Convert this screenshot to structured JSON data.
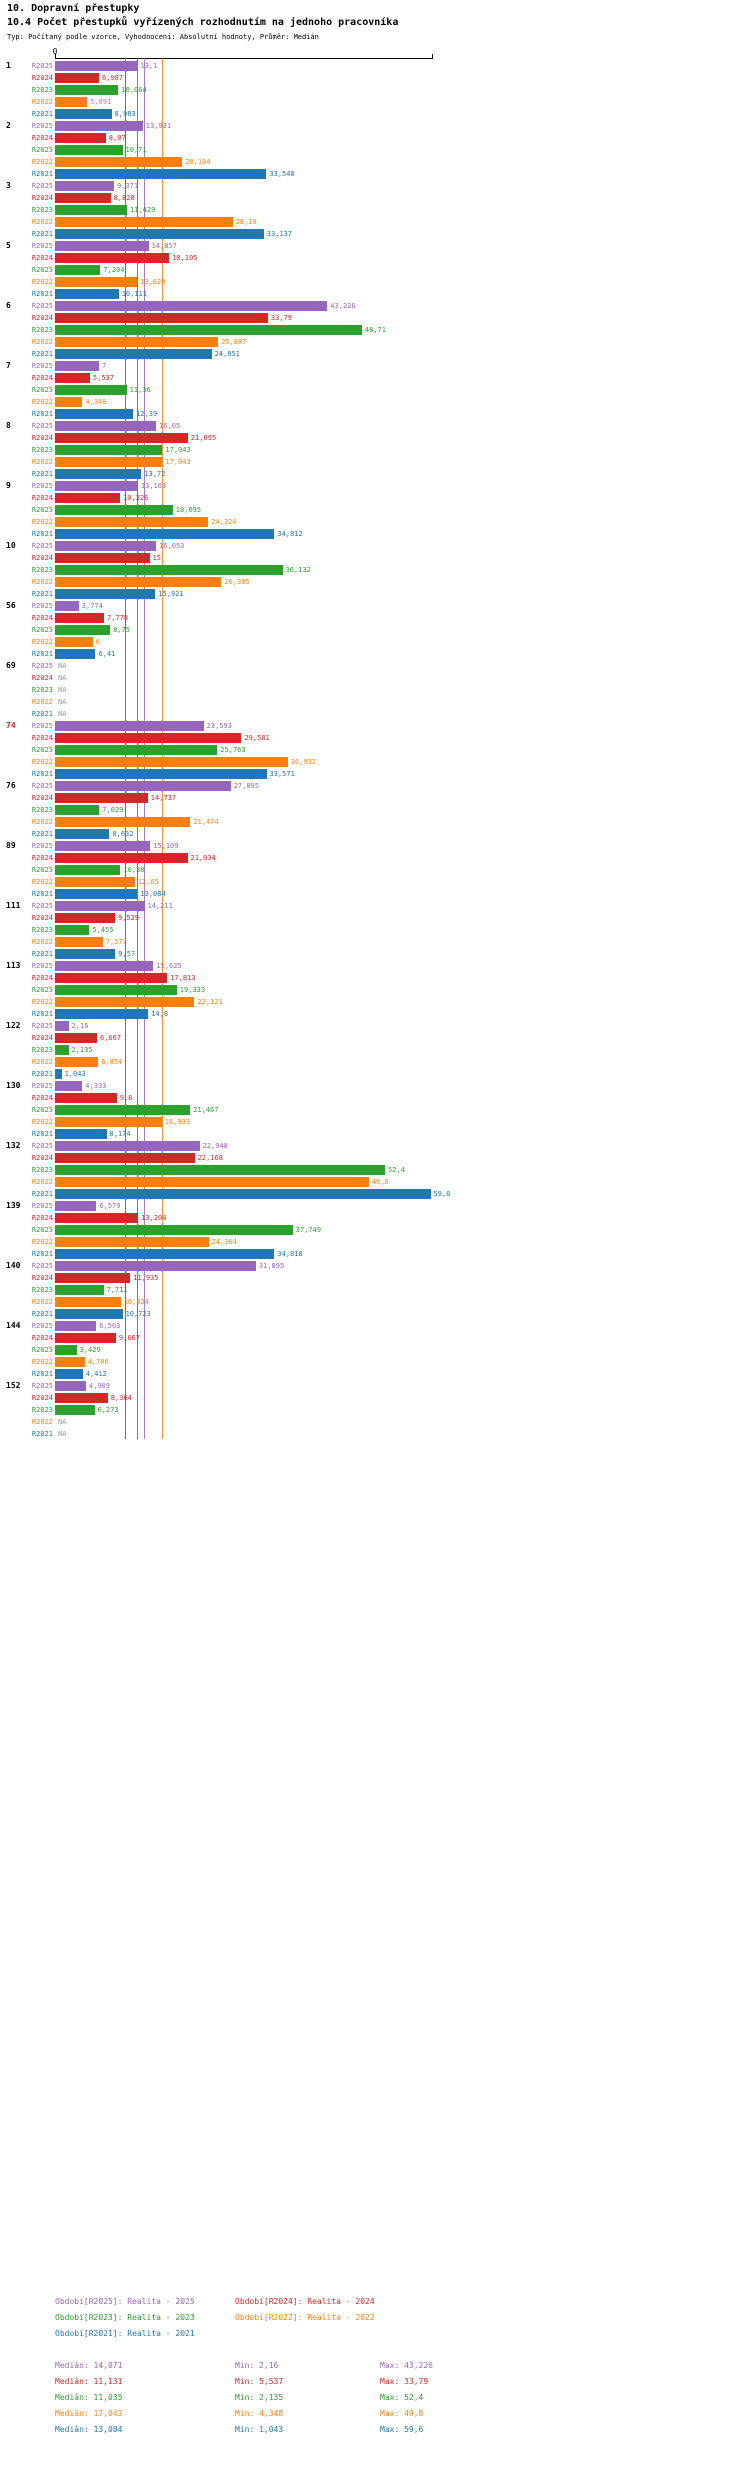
{
  "chart_data": {
    "type": "bar",
    "orientation": "horizontal",
    "title": "10. Dopravní přestupky",
    "subtitle": "10.4 Počet přestupků vyřízených rozhodnutím na jednoho pracovníka",
    "meta": "Typ: Počítaný podle vzorce, Vyhodnocení: Absolutní hodnoty, Průměr: Medián",
    "value_axis": {
      "zero_label": "0",
      "min": 0,
      "max": 60,
      "gridlines": false
    },
    "legend_position": "bottom",
    "na_text": "NA",
    "na_color": "#999999",
    "highlight_group_color": "#d62728",
    "series": [
      {
        "key": "R2025",
        "color": "#9467bd",
        "median": 14.071,
        "legend": "Období[R2025]: Realita - 2025",
        "stats": {
          "median": "Medián: 14,071",
          "min": "Min: 2,16",
          "max": "Max: 43,226"
        }
      },
      {
        "key": "R2024",
        "color": "#d62728",
        "median": 11.131,
        "legend": "Období[R2024]: Realita - 2024",
        "stats": {
          "median": "Medián: 11,131",
          "min": "Min: 5,537",
          "max": "Max: 33,79"
        }
      },
      {
        "key": "R2023",
        "color": "#2ca02c",
        "median": 11.035,
        "legend": "Období[R2023]: Realita - 2023",
        "stats": {
          "median": "Medián: 11,035",
          "min": "Min: 2,135",
          "max": "Max: 52,4"
        }
      },
      {
        "key": "R2022",
        "color": "#ff7f0e",
        "median": 17.043,
        "legend": "Období[R2022]: Realita - 2022",
        "stats": {
          "median": "Medián: 17,043",
          "min": "Min: 4,348",
          "max": "Max: 49,8"
        }
      },
      {
        "key": "R2021",
        "color": "#1f77b4",
        "median": 13.084,
        "legend": "Období[R2021]: Realita - 2021",
        "stats": {
          "median": "Medián: 13,084",
          "min": "Min: 1,043",
          "max": "Max: 59,6"
        }
      }
    ],
    "groups": [
      {
        "id": "1",
        "highlight": false,
        "values": [
          13.1,
          6.987,
          10.064,
          5.091,
          8.983
        ],
        "labels": [
          "13,1",
          "6,987",
          "10,064",
          "5,091",
          "8,983"
        ]
      },
      {
        "id": "2",
        "highlight": false,
        "values": [
          13.931,
          8.07,
          10.71,
          20.194,
          33.548
        ],
        "labels": [
          "13,931",
          "8,07",
          "10,71",
          "20,194",
          "33,548"
        ]
      },
      {
        "id": "3",
        "highlight": false,
        "values": [
          9.371,
          8.828,
          11.429,
          28.19,
          33.137
        ],
        "labels": [
          "9,371",
          "8,828",
          "11,429",
          "28,19",
          "33,137"
        ]
      },
      {
        "id": "5",
        "highlight": false,
        "values": [
          14.857,
          18.105,
          7.204,
          13.029,
          10.111
        ],
        "labels": [
          "14,857",
          "18,105",
          "7,204",
          "13,029",
          "10,111"
        ]
      },
      {
        "id": "6",
        "highlight": false,
        "values": [
          43.226,
          33.79,
          48.71,
          25.887,
          24.851
        ],
        "labels": [
          "43,226",
          "33,79",
          "48,71",
          "25,887",
          "24,851"
        ]
      },
      {
        "id": "7",
        "highlight": false,
        "values": [
          7,
          5.537,
          11.36,
          4.348,
          12.39
        ],
        "labels": [
          "7",
          "5,537",
          "11,36",
          "4,348",
          "12,39"
        ]
      },
      {
        "id": "8",
        "highlight": false,
        "values": [
          16.05,
          21.095,
          17.043,
          17.043,
          13.72
        ],
        "labels": [
          "16,05",
          "21,095",
          "17,043",
          "17,043",
          "13,72"
        ]
      },
      {
        "id": "9",
        "highlight": false,
        "values": [
          13.163,
          10.326,
          18.695,
          24.324,
          34.812
        ],
        "labels": [
          "13,163",
          "10,326",
          "18,695",
          "24,324",
          "34,812"
        ]
      },
      {
        "id": "10",
        "highlight": false,
        "values": [
          16.053,
          15,
          36.132,
          26.395,
          15.921
        ],
        "labels": [
          "16,053",
          "15",
          "36,132",
          "26,395",
          "15,921"
        ]
      },
      {
        "id": "56",
        "highlight": false,
        "values": [
          3.774,
          7.778,
          8.75,
          6,
          6.41
        ],
        "labels": [
          "3,774",
          "7,778",
          "8,75",
          "6",
          "6,41"
        ]
      },
      {
        "id": "69",
        "highlight": false,
        "values": [
          null,
          null,
          null,
          null,
          null
        ],
        "labels": [
          "NA",
          "NA",
          "NA",
          "NA",
          "NA"
        ]
      },
      {
        "id": "74",
        "highlight": true,
        "values": [
          23.593,
          29.581,
          25.763,
          36.932,
          33.571
        ],
        "labels": [
          "23,593",
          "29,581",
          "25,763",
          "36,932",
          "33,571"
        ]
      },
      {
        "id": "76",
        "highlight": false,
        "values": [
          27.895,
          14.737,
          7.029,
          21.474,
          8.632
        ],
        "labels": [
          "27,895",
          "14,737",
          "7,029",
          "21,474",
          "8,632"
        ]
      },
      {
        "id": "89",
        "highlight": false,
        "values": [
          15.109,
          21.034,
          10.38,
          12.65,
          13.084
        ],
        "labels": [
          "15,109",
          "21,034",
          "10,38",
          "12,65",
          "13,084"
        ]
      },
      {
        "id": "111",
        "highlight": false,
        "values": [
          14.211,
          9.529,
          5.455,
          7.577,
          9.57
        ],
        "labels": [
          "14,211",
          "9,529",
          "5,455",
          "7,577",
          "9,57"
        ]
      },
      {
        "id": "113",
        "highlight": false,
        "values": [
          15.625,
          17.813,
          19.333,
          22.121,
          14.8
        ],
        "labels": [
          "15,625",
          "17,813",
          "19,333",
          "22,121",
          "14,8"
        ]
      },
      {
        "id": "122",
        "highlight": false,
        "values": [
          2.16,
          6.667,
          2.135,
          6.854,
          1.043
        ],
        "labels": [
          "2,16",
          "6,667",
          "2,135",
          "6,854",
          "1,043"
        ]
      },
      {
        "id": "130",
        "highlight": false,
        "values": [
          4.333,
          9.8,
          21.467,
          16.933,
          8.174
        ],
        "labels": [
          "4,333",
          "9,8",
          "21,467",
          "16,933",
          "8,174"
        ]
      },
      {
        "id": "132",
        "highlight": false,
        "values": [
          22.948,
          22.168,
          52.4,
          49.8,
          59.6
        ],
        "labels": [
          "22,948",
          "22,168",
          "52,4",
          "49,8",
          "59,6"
        ]
      },
      {
        "id": "139",
        "highlight": false,
        "values": [
          6.579,
          13.204,
          37.749,
          24.364,
          34.818
        ],
        "labels": [
          "6,579",
          "13,204",
          "37,749",
          "24,364",
          "34,818"
        ]
      },
      {
        "id": "140",
        "highlight": false,
        "values": [
          31.895,
          11.935,
          7.711,
          10.424,
          10.723
        ],
        "labels": [
          "31,895",
          "11,935",
          "7,711",
          "10,424",
          "10,723"
        ]
      },
      {
        "id": "144",
        "highlight": false,
        "values": [
          6.563,
          9.667,
          3.429,
          4.706,
          4.412
        ],
        "labels": [
          "6,563",
          "9,667",
          "3,429",
          "4,706",
          "4,412"
        ]
      },
      {
        "id": "152",
        "highlight": false,
        "values": [
          4.909,
          8.364,
          6.273,
          null,
          null
        ],
        "labels": [
          "4,909",
          "8,364",
          "6,273",
          "NA",
          "NA"
        ]
      }
    ]
  }
}
